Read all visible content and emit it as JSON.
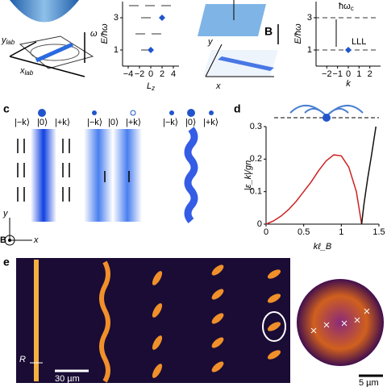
{
  "labels": {
    "a_omega": "ω",
    "ylab": {
      "base": "y",
      "sub": "lab"
    },
    "xlab": {
      "base": "x",
      "sub": "lab"
    },
    "b_letter": "B",
    "b_y": "y",
    "b_x": "x",
    "hw": {
      "base": "ħω",
      "sub": "c"
    },
    "lll": "LLL",
    "c_letter": "c",
    "d_letter": "d",
    "e_letter": "e",
    "kets": [
      [
        "|−k⟩",
        "|0⟩",
        "|+k⟩"
      ],
      [
        "|−k⟩",
        "|0⟩",
        "|+k⟩"
      ],
      [
        "|−k⟩",
        "|0⟩",
        "|+k⟩"
      ]
    ],
    "c_y": "y",
    "c_B": "B",
    "c_x": "x",
    "R": "R",
    "bar30": "30 µm",
    "bar5": "5 µm"
  },
  "chart_data": [
    {
      "type": "scatter",
      "ylabel": "E/ħω",
      "xlabel": {
        "base": "L",
        "sub": "z"
      },
      "x": [
        0,
        2
      ],
      "values": [
        1,
        3
      ],
      "color": "#2255cc",
      "xlim": [
        -5,
        5
      ],
      "ylim": [
        0,
        4
      ],
      "xticks": [
        {
          "value": -4,
          "label": "−4"
        },
        {
          "value": -2,
          "label": "−2"
        },
        0,
        2,
        4
      ],
      "yticks": [
        1,
        3
      ]
    },
    {
      "type": "scatter",
      "ylabel": "E/ħω",
      "xlabel": "k",
      "x": [
        0
      ],
      "values": [
        1
      ],
      "color": "#2255cc",
      "xlim": [
        -3,
        3
      ],
      "ylim": [
        0,
        4
      ],
      "xticks": [
        {
          "value": -2,
          "label": "−2"
        },
        {
          "value": -1,
          "label": "−1"
        },
        0,
        1,
        2
      ],
      "yticks": [
        1,
        3
      ]
    },
    {
      "type": "line",
      "ylabel": "|ε_k|/gn",
      "xlabel": "kℓ_B",
      "series": [
        {
          "color": "#cc2222",
          "x": [
            0,
            0.1,
            0.2,
            0.3,
            0.4,
            0.5,
            0.6,
            0.7,
            0.8,
            0.9,
            1.0,
            1.1,
            1.2,
            1.27
          ],
          "values": [
            0,
            0.01,
            0.025,
            0.045,
            0.07,
            0.1,
            0.13,
            0.165,
            0.195,
            0.213,
            0.21,
            0.175,
            0.1,
            0
          ]
        },
        {
          "color": "#111111",
          "x": [
            1.27,
            1.3,
            1.35,
            1.4,
            1.46
          ],
          "values": [
            0,
            0.06,
            0.14,
            0.21,
            0.3
          ]
        }
      ],
      "xlim": [
        0,
        1.5
      ],
      "ylim": [
        0,
        0.3
      ],
      "xticks": [
        0,
        0.5,
        1,
        1.5
      ],
      "yticks": [
        0,
        0.1,
        0.2,
        0.3
      ]
    }
  ]
}
